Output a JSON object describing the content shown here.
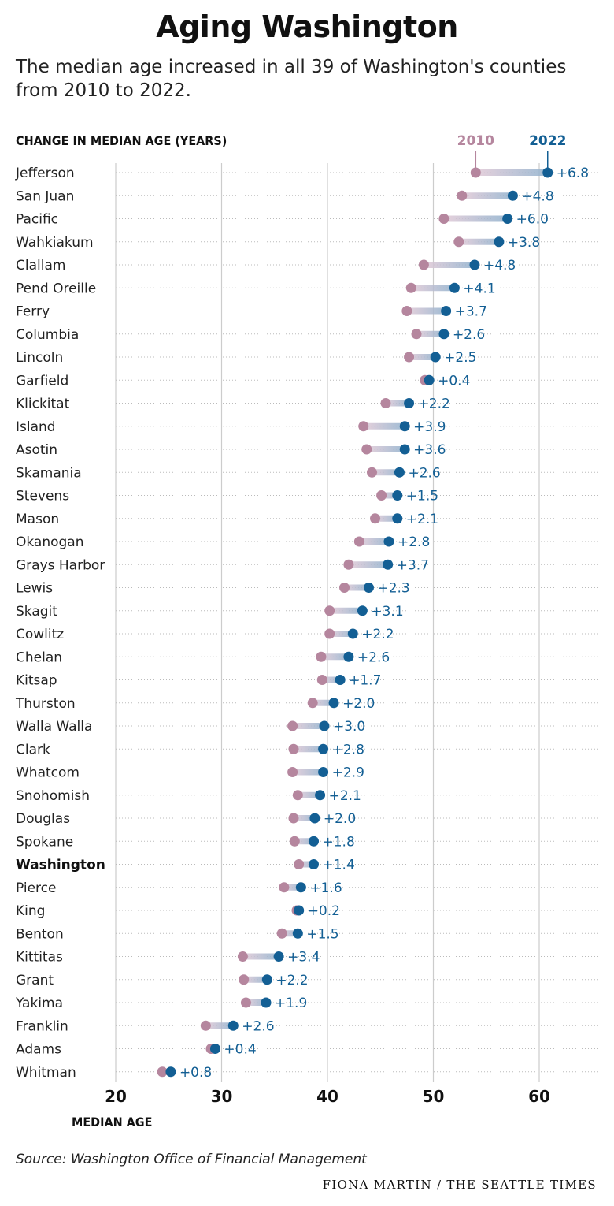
{
  "title": "Aging Washington",
  "subtitle": "The median age increased in all 39 of Washington's counties from 2010 to 2022.",
  "source": "Source: Washington Office of Financial Management",
  "credit": "FIONA MARTIN / THE SEATTLE TIMES",
  "colors": {
    "y2010": "#b5869e",
    "y2022": "#135f94",
    "grid": "#cccccc",
    "rowline": "#bbbbbb"
  },
  "chart_data": {
    "type": "dumbbell",
    "title": "CHANGE IN MEDIAN AGE (YEARS)",
    "xlabel": "MEDIAN AGE",
    "xlim": [
      20,
      65
    ],
    "xticks": [
      20,
      30,
      40,
      50,
      60
    ],
    "grid": "vertical",
    "legend": {
      "placement": "top-right",
      "start_label": "2010",
      "end_label": "2022"
    },
    "rows": [
      {
        "name": "Jefferson",
        "y2010": 54.0,
        "y2022": 60.8,
        "change": "+6.8"
      },
      {
        "name": "San Juan",
        "y2010": 52.7,
        "y2022": 57.5,
        "change": "+4.8"
      },
      {
        "name": "Pacific",
        "y2010": 51.0,
        "y2022": 57.0,
        "change": "+6.0"
      },
      {
        "name": "Wahkiakum",
        "y2010": 52.4,
        "y2022": 56.2,
        "change": "+3.8"
      },
      {
        "name": "Clallam",
        "y2010": 49.1,
        "y2022": 53.9,
        "change": "+4.8"
      },
      {
        "name": "Pend Oreille",
        "y2010": 47.9,
        "y2022": 52.0,
        "change": "+4.1"
      },
      {
        "name": "Ferry",
        "y2010": 47.5,
        "y2022": 51.2,
        "change": "+3.7"
      },
      {
        "name": "Columbia",
        "y2010": 48.4,
        "y2022": 51.0,
        "change": "+2.6"
      },
      {
        "name": "Lincoln",
        "y2010": 47.7,
        "y2022": 50.2,
        "change": "+2.5"
      },
      {
        "name": "Garfield",
        "y2010": 49.2,
        "y2022": 49.6,
        "change": "+0.4"
      },
      {
        "name": "Klickitat",
        "y2010": 45.5,
        "y2022": 47.7,
        "change": "+2.2"
      },
      {
        "name": "Island",
        "y2010": 43.4,
        "y2022": 47.3,
        "change": "+3.9"
      },
      {
        "name": "Asotin",
        "y2010": 43.7,
        "y2022": 47.3,
        "change": "+3.6"
      },
      {
        "name": "Skamania",
        "y2010": 44.2,
        "y2022": 46.8,
        "change": "+2.6"
      },
      {
        "name": "Stevens",
        "y2010": 45.1,
        "y2022": 46.6,
        "change": "+1.5"
      },
      {
        "name": "Mason",
        "y2010": 44.5,
        "y2022": 46.6,
        "change": "+2.1"
      },
      {
        "name": "Okanogan",
        "y2010": 43.0,
        "y2022": 45.8,
        "change": "+2.8"
      },
      {
        "name": "Grays Harbor",
        "y2010": 42.0,
        "y2022": 45.7,
        "change": "+3.7"
      },
      {
        "name": "Lewis",
        "y2010": 41.6,
        "y2022": 43.9,
        "change": "+2.3"
      },
      {
        "name": "Skagit",
        "y2010": 40.2,
        "y2022": 43.3,
        "change": "+3.1"
      },
      {
        "name": "Cowlitz",
        "y2010": 40.2,
        "y2022": 42.4,
        "change": "+2.2"
      },
      {
        "name": "Chelan",
        "y2010": 39.4,
        "y2022": 42.0,
        "change": "+2.6"
      },
      {
        "name": "Kitsap",
        "y2010": 39.5,
        "y2022": 41.2,
        "change": "+1.7"
      },
      {
        "name": "Thurston",
        "y2010": 38.6,
        "y2022": 40.6,
        "change": "+2.0"
      },
      {
        "name": "Walla Walla",
        "y2010": 36.7,
        "y2022": 39.7,
        "change": "+3.0"
      },
      {
        "name": "Clark",
        "y2010": 36.8,
        "y2022": 39.6,
        "change": "+2.8"
      },
      {
        "name": "Whatcom",
        "y2010": 36.7,
        "y2022": 39.6,
        "change": "+2.9"
      },
      {
        "name": "Snohomish",
        "y2010": 37.2,
        "y2022": 39.3,
        "change": "+2.1"
      },
      {
        "name": "Douglas",
        "y2010": 36.8,
        "y2022": 38.8,
        "change": "+2.0"
      },
      {
        "name": "Spokane",
        "y2010": 36.9,
        "y2022": 38.7,
        "change": "+1.8"
      },
      {
        "name": "Washington",
        "y2010": 37.3,
        "y2022": 38.7,
        "change": "+1.4",
        "bold": true
      },
      {
        "name": "Pierce",
        "y2010": 35.9,
        "y2022": 37.5,
        "change": "+1.6"
      },
      {
        "name": "King",
        "y2010": 37.1,
        "y2022": 37.3,
        "change": "+0.2"
      },
      {
        "name": "Benton",
        "y2010": 35.7,
        "y2022": 37.2,
        "change": "+1.5"
      },
      {
        "name": "Kittitas",
        "y2010": 32.0,
        "y2022": 35.4,
        "change": "+3.4"
      },
      {
        "name": "Grant",
        "y2010": 32.1,
        "y2022": 34.3,
        "change": "+2.2"
      },
      {
        "name": "Yakima",
        "y2010": 32.3,
        "y2022": 34.2,
        "change": "+1.9"
      },
      {
        "name": "Franklin",
        "y2010": 28.5,
        "y2022": 31.1,
        "change": "+2.6"
      },
      {
        "name": "Adams",
        "y2010": 29.0,
        "y2022": 29.4,
        "change": "+0.4"
      },
      {
        "name": "Whitman",
        "y2010": 24.4,
        "y2022": 25.2,
        "change": "+0.8"
      }
    ]
  }
}
